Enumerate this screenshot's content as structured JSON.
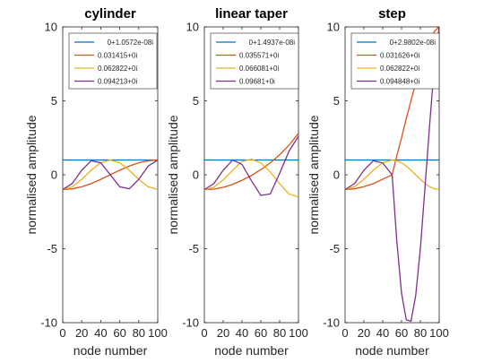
{
  "chart_data": [
    {
      "type": "line",
      "title": "cylinder",
      "xlabel": "node number",
      "ylabel": "normalised amplitude",
      "xlim": [
        0,
        100
      ],
      "ylim": [
        -10,
        10
      ],
      "xticks": [
        0,
        20,
        40,
        60,
        80,
        100
      ],
      "yticks": [
        -10,
        -5,
        0,
        5,
        10
      ],
      "grid": false,
      "legend_position": "top-right",
      "x": [
        0,
        10,
        20,
        30,
        40,
        50,
        60,
        70,
        80,
        90,
        100
      ],
      "series": [
        {
          "name": "0+1.0572e-08i",
          "color": "#0072BD",
          "values": [
            1,
            1,
            1,
            1,
            1,
            1,
            1,
            1,
            1,
            1,
            1
          ]
        },
        {
          "name": "0.031415+0i",
          "color": "#D95319",
          "values": [
            -1,
            -0.95,
            -0.81,
            -0.59,
            -0.31,
            0,
            0.31,
            0.59,
            0.81,
            0.95,
            1
          ]
        },
        {
          "name": "0.062822+0i",
          "color": "#EDB120",
          "values": [
            -1,
            -0.81,
            -0.31,
            0.31,
            0.81,
            1,
            0.81,
            0.31,
            -0.31,
            -0.81,
            -1
          ]
        },
        {
          "name": "0.094213+0i",
          "color": "#7E2F8E",
          "values": [
            -1,
            -0.59,
            0.31,
            0.95,
            0.81,
            0,
            -0.81,
            -0.95,
            -0.31,
            0.59,
            1
          ]
        }
      ]
    },
    {
      "type": "line",
      "title": "linear taper",
      "xlabel": "node number",
      "ylabel": "normalised amplitude",
      "xlim": [
        0,
        100
      ],
      "ylim": [
        -10,
        10
      ],
      "xticks": [
        0,
        20,
        40,
        60,
        80,
        100
      ],
      "yticks": [
        -10,
        -5,
        0,
        5,
        10
      ],
      "grid": false,
      "legend_position": "top-right",
      "x": [
        0,
        10,
        20,
        30,
        40,
        50,
        60,
        70,
        80,
        90,
        100
      ],
      "series": [
        {
          "name": "0+1.4937e-08i",
          "color": "#0072BD",
          "values": [
            1,
            1,
            1,
            1,
            1,
            1,
            1,
            1,
            1,
            1,
            1
          ]
        },
        {
          "name": "0.035571+0i",
          "color": "#D95319",
          "values": [
            -1,
            -0.97,
            -0.85,
            -0.65,
            -0.37,
            -0.05,
            0.35,
            0.8,
            1.35,
            2.0,
            2.8
          ]
        },
        {
          "name": "0.066081+0i",
          "color": "#EDB120",
          "values": [
            -1,
            -0.85,
            -0.35,
            0.3,
            0.9,
            1.05,
            0.8,
            0.2,
            -0.6,
            -1.3,
            -1.5
          ]
        },
        {
          "name": "0.09681+0i",
          "color": "#7E2F8E",
          "values": [
            -1,
            -0.6,
            0.3,
            1.0,
            0.7,
            -0.4,
            -1.4,
            -1.3,
            0.1,
            1.6,
            2.6
          ]
        }
      ]
    },
    {
      "type": "line",
      "title": "step",
      "xlabel": "node number",
      "ylabel": "normalised amplitude",
      "xlim": [
        0,
        100
      ],
      "ylim": [
        -10,
        10
      ],
      "xticks": [
        0,
        20,
        40,
        60,
        80,
        100
      ],
      "yticks": [
        -10,
        -5,
        0,
        5,
        10
      ],
      "grid": false,
      "legend_position": "top-right",
      "x": [
        0,
        10,
        20,
        30,
        40,
        50,
        55,
        60,
        65,
        70,
        75,
        80,
        85,
        90,
        95,
        100
      ],
      "series": [
        {
          "name": "0+2.9802e-08i",
          "color": "#0072BD",
          "values": [
            1,
            1,
            1,
            1,
            1,
            1,
            1,
            1,
            1,
            1,
            1,
            1,
            1,
            1,
            1,
            1
          ]
        },
        {
          "name": "0.031626+0i",
          "color": "#D95319",
          "values": [
            -1,
            -0.95,
            -0.8,
            -0.6,
            -0.3,
            0,
            1.3,
            2.5,
            3.8,
            5.0,
            6.2,
            7.3,
            8.3,
            9.1,
            9.7,
            10.0
          ]
        },
        {
          "name": "0.062822+0i",
          "color": "#EDB120",
          "values": [
            -1,
            -0.81,
            -0.31,
            0.31,
            0.81,
            1,
            0.95,
            0.81,
            0.59,
            0.31,
            0,
            -0.31,
            -0.59,
            -0.81,
            -0.95,
            -1
          ]
        },
        {
          "name": "0.094848+0i",
          "color": "#7E2F8E",
          "values": [
            -1,
            -0.6,
            0.3,
            0.95,
            0.8,
            0,
            -4.5,
            -8.0,
            -9.8,
            -9.9,
            -8.2,
            -5.0,
            -0.8,
            3.5,
            7.5,
            10.0
          ]
        }
      ]
    }
  ]
}
